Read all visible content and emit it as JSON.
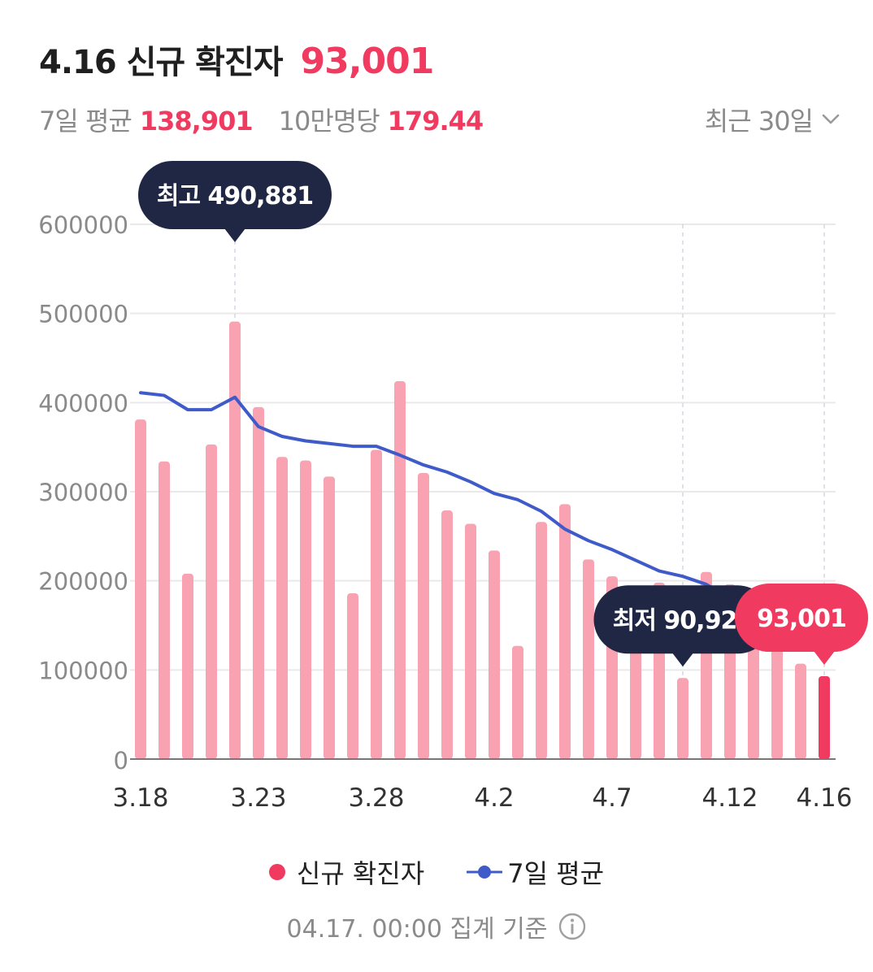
{
  "header": {
    "title": "4.16 신규 확진자",
    "title_value": "93,001",
    "avg_label": "7일 평균",
    "avg_value": "138,901",
    "per100k_label": "10만명당",
    "per100k_value": "179.44",
    "range_label": "최근 30일",
    "range_icon": "chevron-down-icon"
  },
  "chart_data": {
    "type": "bar",
    "ylim": [
      0,
      600000
    ],
    "yticks": [
      "600000",
      "500000",
      "400000",
      "300000",
      "200000",
      "100000",
      "0"
    ],
    "ytick_values": [
      600000,
      500000,
      400000,
      300000,
      200000,
      100000,
      0
    ],
    "categories": [
      "3.18",
      "3.19",
      "3.20",
      "3.21",
      "3.22",
      "3.23",
      "3.24",
      "3.25",
      "3.26",
      "3.27",
      "3.28",
      "3.29",
      "3.30",
      "3.31",
      "4.1",
      "4.2",
      "4.3",
      "4.4",
      "4.5",
      "4.6",
      "4.7",
      "4.8",
      "4.9",
      "4.10",
      "4.11",
      "4.12",
      "4.13",
      "4.14",
      "4.15",
      "4.16"
    ],
    "xtick_labels": [
      {
        "index": 0,
        "label": "3.18"
      },
      {
        "index": 5,
        "label": "3.23"
      },
      {
        "index": 10,
        "label": "3.28"
      },
      {
        "index": 15,
        "label": "4.2"
      },
      {
        "index": 20,
        "label": "4.7"
      },
      {
        "index": 25,
        "label": "4.12"
      },
      {
        "index": 29,
        "label": "4.16"
      }
    ],
    "series": [
      {
        "name": "신규 확진자",
        "type": "bar",
        "color": "#f9a3b2",
        "highlight_color": "#f03a5f",
        "values": [
          381000,
          334000,
          208000,
          353000,
          490881,
          395000,
          339000,
          335000,
          317000,
          186000,
          347000,
          424000,
          321000,
          279000,
          264000,
          234000,
          127000,
          266000,
          286000,
          224000,
          205000,
          185000,
          198000,
          90928,
          210000,
          196000,
          149000,
          125000,
          107000,
          93001
        ]
      },
      {
        "name": "7일 평균",
        "type": "line",
        "color": "#3f5bc9",
        "values": [
          411000,
          408000,
          392000,
          392000,
          406000,
          373000,
          362000,
          357000,
          354000,
          351000,
          351000,
          341000,
          330000,
          322000,
          311000,
          298000,
          291000,
          278000,
          258000,
          245000,
          235000,
          223000,
          211000,
          205000,
          196000,
          180000,
          168000,
          156000,
          146000,
          138901
        ]
      }
    ],
    "annotations": [
      {
        "label": "최고 490,881",
        "index": 4,
        "style": "dark"
      },
      {
        "label": "최저 90,928",
        "index": 23,
        "style": "dark"
      },
      {
        "label": "93,001",
        "index": 29,
        "style": "accent"
      }
    ],
    "grid": true
  },
  "legend": {
    "items": [
      {
        "label": "신규 확진자"
      },
      {
        "label": "7일 평균"
      }
    ]
  },
  "footer": {
    "text": "04.17. 00:00 집계 기준",
    "icon": "info-icon"
  },
  "colors": {
    "accent": "#f03a5f",
    "bar": "#f9a3b2",
    "line": "#3f5bc9",
    "tooltip_dark": "#1f2744",
    "grid": "#e9e9e9",
    "muted": "#8a8a8a"
  }
}
